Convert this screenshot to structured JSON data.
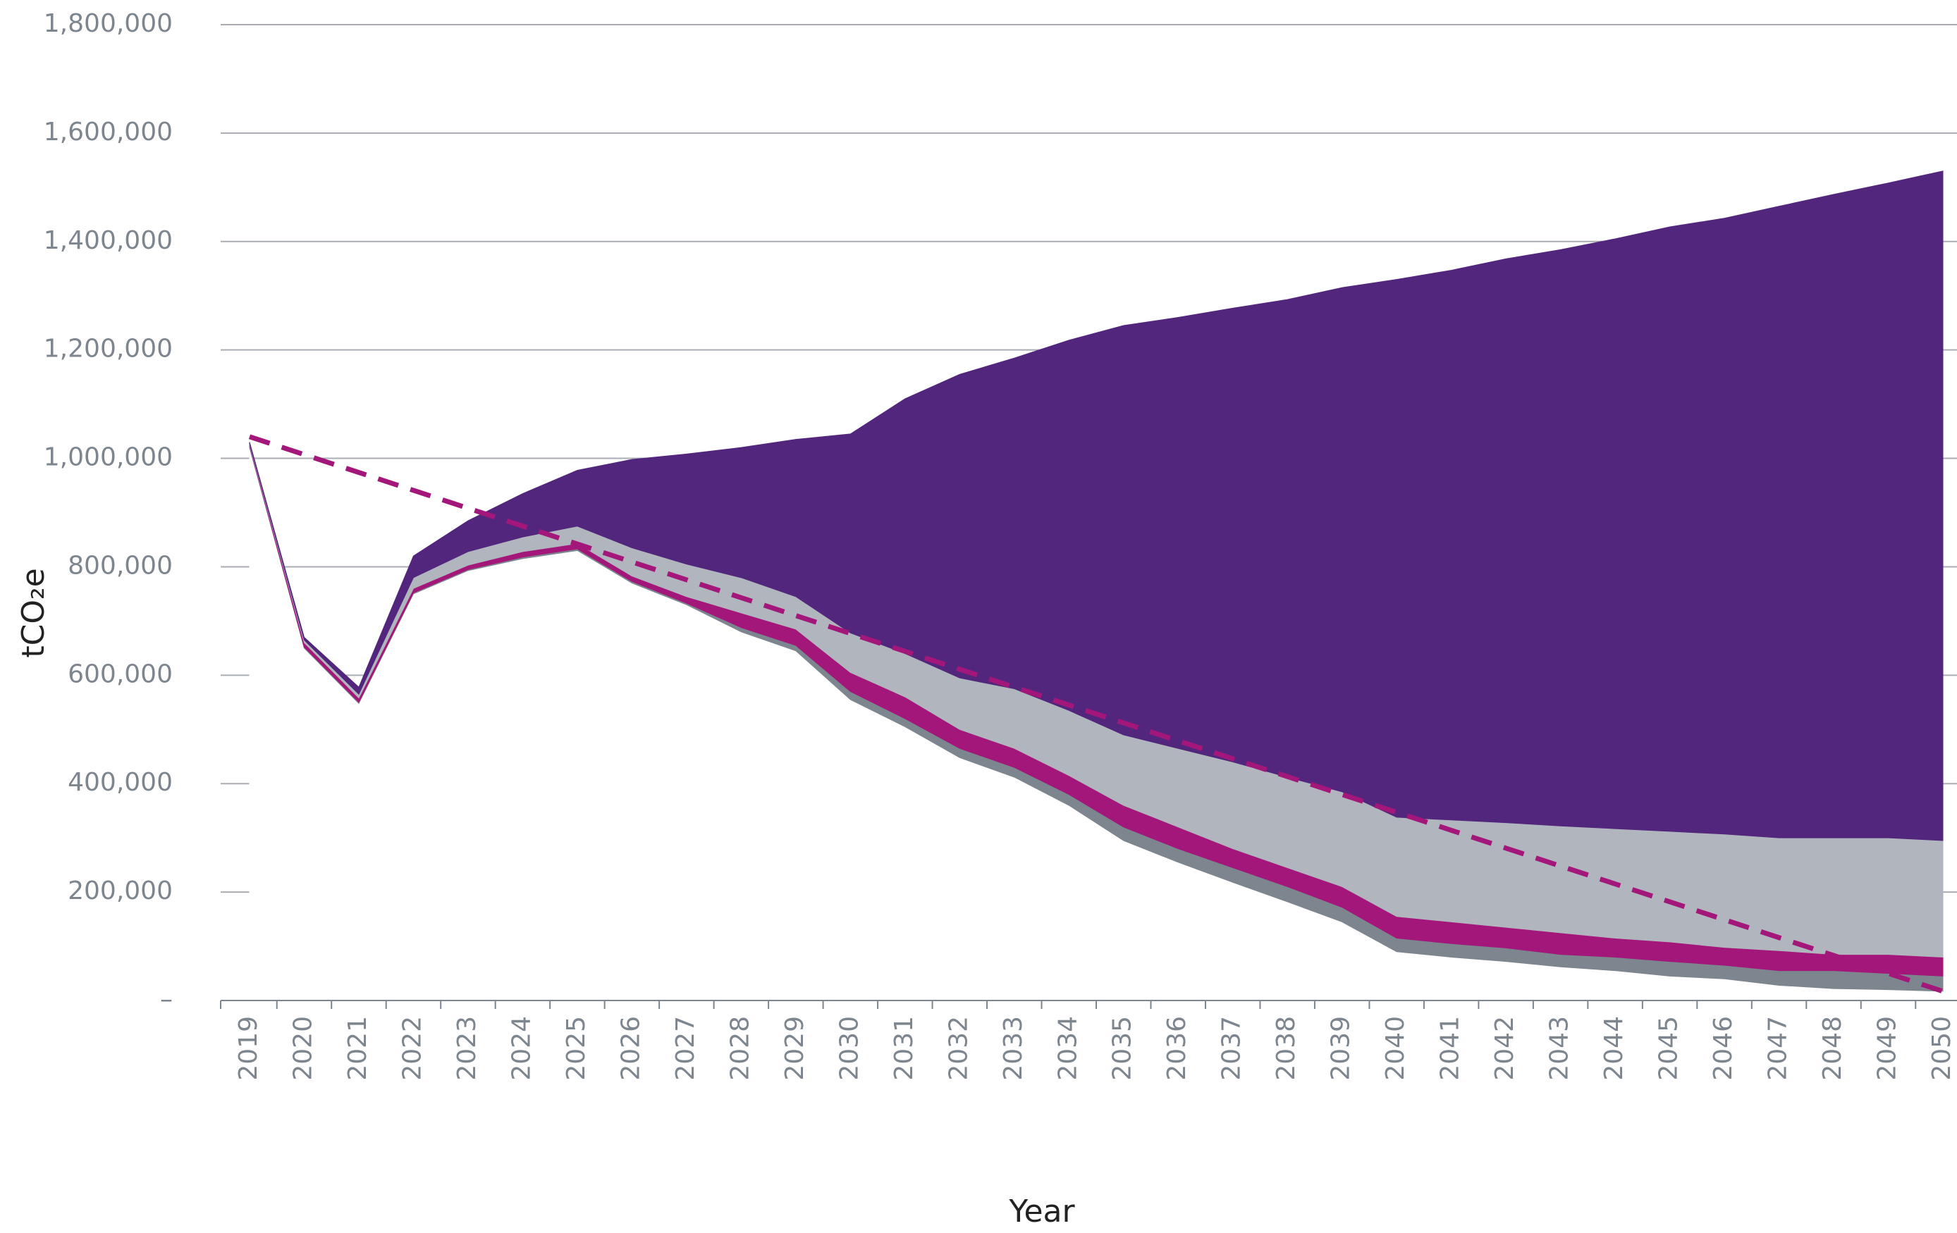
{
  "chart_data": {
    "type": "stacked-area",
    "y_label": "tCO₂e",
    "x_label": "Year",
    "categories": [
      "2019",
      "2020",
      "2021",
      "2022",
      "2023",
      "2024",
      "2025",
      "2026",
      "2027",
      "2028",
      "2029",
      "2030",
      "2031",
      "2032",
      "2033",
      "2034",
      "2035",
      "2036",
      "2037",
      "2038",
      "2039",
      "2040",
      "2041",
      "2042",
      "2043",
      "2044",
      "2045",
      "2046",
      "2047",
      "2048",
      "2049",
      "2050"
    ],
    "series": [
      {
        "color": "#ffffff",
        "values": [
          1020000,
          650000,
          548000,
          750000,
          793000,
          815000,
          830000,
          770000,
          730000,
          680000,
          645000,
          555000,
          505000,
          448000,
          412000,
          360000,
          295000,
          255000,
          218000,
          182000,
          145000,
          90000,
          80000,
          72000,
          62000,
          55000,
          45000,
          40000,
          28000,
          22000,
          20000,
          17000
        ]
      },
      {
        "color": "#7d858e",
        "values": [
          2000,
          2000,
          2000,
          2000,
          2000,
          3000,
          3000,
          3000,
          3000,
          8000,
          10000,
          15000,
          15000,
          17000,
          18000,
          20000,
          25000,
          25000,
          27000,
          28000,
          27000,
          25000,
          25000,
          25000,
          23000,
          25000,
          27000,
          25000,
          27000,
          33000,
          30000,
          28000
        ]
      },
      {
        "color": "#a3177a",
        "values": [
          3000,
          8000,
          8000,
          8000,
          8000,
          10000,
          10000,
          10000,
          12000,
          27000,
          30000,
          35000,
          40000,
          35000,
          35000,
          35000,
          40000,
          40000,
          35000,
          35000,
          38000,
          40000,
          40000,
          38000,
          40000,
          35000,
          36000,
          33000,
          37000,
          30000,
          35000,
          35000
        ]
      },
      {
        "color": "#b1b5bd",
        "values": [
          2000,
          5000,
          7000,
          20000,
          25000,
          27000,
          32000,
          52000,
          60000,
          65000,
          60000,
          73000,
          80000,
          95000,
          110000,
          120000,
          130000,
          145000,
          160000,
          167000,
          175000,
          183000,
          188000,
          193000,
          197000,
          202000,
          204000,
          209000,
          208000,
          215000,
          215000,
          215000
        ]
      },
      {
        "color": "#52267d",
        "values": [
          3000,
          5000,
          13000,
          40000,
          57000,
          80000,
          103000,
          163000,
          203000,
          240000,
          290000,
          367000,
          470000,
          560000,
          610000,
          683000,
          755000,
          795000,
          837000,
          881000,
          930000,
          992000,
          1014000,
          1040000,
          1063000,
          1088000,
          1115000,
          1136000,
          1165000,
          1187000,
          1208000,
          1235000
        ]
      }
    ],
    "target_line": {
      "color": "#a3177a",
      "dashed": true,
      "values": [
        1040000,
        1007000,
        974000,
        941000,
        908000,
        875000,
        842000,
        809000,
        776000,
        743000,
        710000,
        677000,
        644000,
        611000,
        578000,
        545000,
        512000,
        479000,
        446000,
        413000,
        380000,
        347000,
        314000,
        281000,
        248000,
        215000,
        182000,
        149000,
        116000,
        83000,
        50000,
        17000
      ]
    },
    "ylim": [
      0,
      1800000
    ],
    "yticks": [
      {
        "value": 0,
        "label": "–"
      },
      {
        "value": 200000,
        "label": "200,000"
      },
      {
        "value": 400000,
        "label": "400,000"
      },
      {
        "value": 600000,
        "label": "600,000"
      },
      {
        "value": 800000,
        "label": "800,000"
      },
      {
        "value": 1000000,
        "label": "1,000,000"
      },
      {
        "value": 1200000,
        "label": "1,200,000"
      },
      {
        "value": 1400000,
        "label": "1,400,000"
      },
      {
        "value": 1600000,
        "label": "1,600,000"
      },
      {
        "value": 1800000,
        "label": "1,800,000"
      }
    ],
    "grid": true
  }
}
